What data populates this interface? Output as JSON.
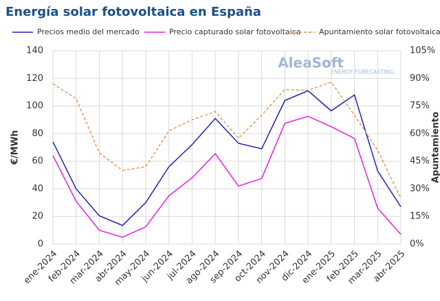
{
  "chart_data": {
    "type": "line",
    "title": "Energía solar fotovoltaica en España",
    "watermark": {
      "brand": "AleaSoft",
      "tagline": "ENERGY FORECASTING"
    },
    "ylabel": "€/MWh",
    "y2label": "Apuntamiento",
    "categories": [
      "ene-2024",
      "feb-2024",
      "mar-2024",
      "abr-2024",
      "may-2024",
      "jun-2024",
      "jul-2024",
      "ago-2024",
      "sep-2024",
      "oct-2024",
      "nov-2024",
      "dic-2024",
      "ene-2025",
      "feb-2025",
      "mar-2025",
      "abr-2025"
    ],
    "series": [
      {
        "name": "Precios medio del mercado",
        "color": "#1f1fbf",
        "line_style": "solid",
        "values": [
          74,
          40,
          20.5,
          13.5,
          30,
          56,
          72,
          91,
          73,
          69,
          104,
          111,
          96.5,
          108,
          53,
          27
        ]
      },
      {
        "name": "Precio capturado solar fotovoltaica",
        "color": "#e61ee6",
        "line_style": "solid",
        "values": [
          64,
          31,
          10,
          5,
          12.5,
          35,
          48,
          65.5,
          42,
          47.5,
          87.5,
          92.5,
          85,
          76.5,
          26,
          7
        ]
      },
      {
        "name": "Apuntamiento solar fotovoltaica",
        "color": "#e8853a",
        "line_style": "dashed",
        "axis": "y2",
        "values": [
          87,
          79,
          49.5,
          40,
          42,
          61.5,
          67.5,
          72,
          57.5,
          70,
          84,
          83.5,
          88,
          70,
          51,
          25
        ]
      }
    ],
    "ylim": [
      0,
      140
    ],
    "yticks": [
      0,
      20,
      40,
      60,
      80,
      100,
      120,
      140
    ],
    "y2lim": [
      0,
      105
    ],
    "y2ticks": [
      {
        "value": 0,
        "label": "0%"
      },
      {
        "value": 15,
        "label": "15%"
      },
      {
        "value": 30,
        "label": "30%"
      },
      {
        "value": 45,
        "label": "45%"
      },
      {
        "value": 60,
        "label": "60%"
      },
      {
        "value": 75,
        "label": "75%"
      },
      {
        "value": 90,
        "label": "90%"
      },
      {
        "value": 105,
        "label": "105%"
      }
    ],
    "grid": true
  }
}
